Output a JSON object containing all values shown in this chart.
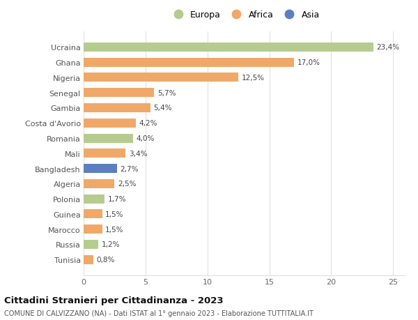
{
  "countries": [
    "Tunisia",
    "Russia",
    "Marocco",
    "Guinea",
    "Polonia",
    "Algeria",
    "Bangladesh",
    "Mali",
    "Romania",
    "Costa d'Avorio",
    "Gambia",
    "Senegal",
    "Nigeria",
    "Ghana",
    "Ucraina"
  ],
  "values": [
    0.8,
    1.2,
    1.5,
    1.5,
    1.7,
    2.5,
    2.7,
    3.4,
    4.0,
    4.2,
    5.4,
    5.7,
    12.5,
    17.0,
    23.4
  ],
  "labels": [
    "0,8%",
    "1,2%",
    "1,5%",
    "1,5%",
    "1,7%",
    "2,5%",
    "2,7%",
    "3,4%",
    "4,0%",
    "4,2%",
    "5,4%",
    "5,7%",
    "12,5%",
    "17,0%",
    "23,4%"
  ],
  "bar_colors": [
    "#f0a868",
    "#b5cc8e",
    "#f0a868",
    "#f0a868",
    "#b5cc8e",
    "#f0a868",
    "#5b7fbf",
    "#f0a868",
    "#b5cc8e",
    "#f0a868",
    "#f0a868",
    "#f0a868",
    "#f0a868",
    "#f0a868",
    "#b5cc8e"
  ],
  "xlim": [
    0,
    26
  ],
  "xticks": [
    0,
    5,
    10,
    15,
    20,
    25
  ],
  "title": "Cittadini Stranieri per Cittadinanza - 2023",
  "subtitle": "COMUNE DI CALVIZZANO (NA) - Dati ISTAT al 1° gennaio 2023 - Elaborazione TUTTITALIA.IT",
  "background_color": "#ffffff",
  "grid_color": "#e0e0e0",
  "legend_labels": [
    "Europa",
    "Africa",
    "Asia"
  ],
  "legend_colors": [
    "#b5cc8e",
    "#f0a868",
    "#5b7fbf"
  ]
}
